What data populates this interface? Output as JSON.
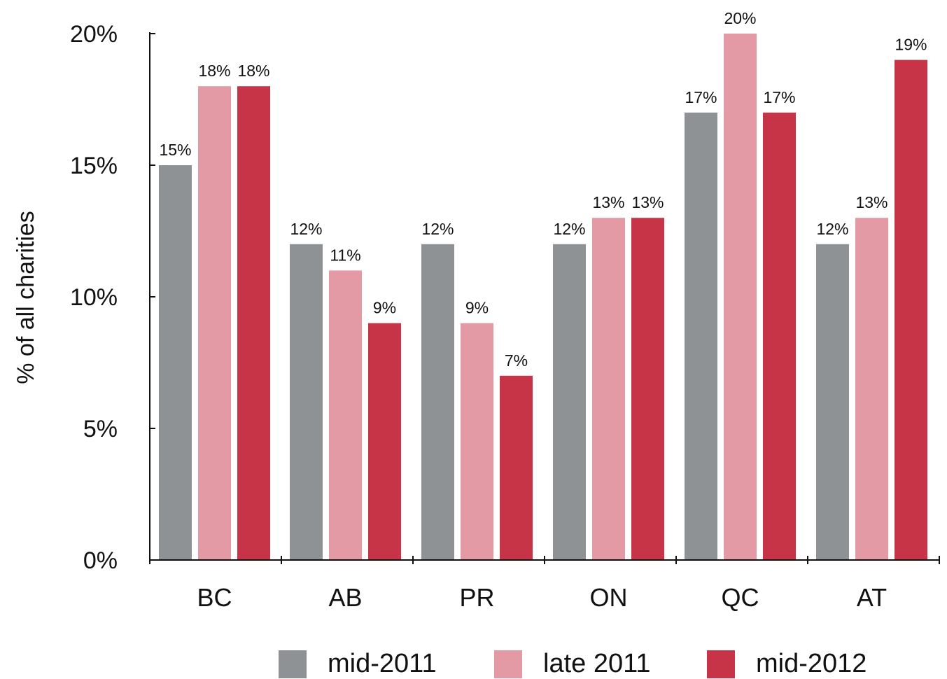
{
  "chart_data": {
    "type": "bar",
    "title": "",
    "xlabel": "",
    "ylabel": "% of all charities",
    "categories": [
      "BC",
      "AB",
      "PR",
      "ON",
      "QC",
      "AT"
    ],
    "series": [
      {
        "name": "mid-2011",
        "color": "#8f9294",
        "values": [
          15,
          12,
          12,
          12,
          17,
          12
        ],
        "labels": [
          "15%",
          "12%",
          "12%",
          "12%",
          "17%",
          "12%"
        ]
      },
      {
        "name": "late 2011",
        "color": "#e39aa5",
        "values": [
          18,
          11,
          9,
          13,
          20,
          13
        ],
        "labels": [
          "18%",
          "11%",
          "9%",
          "13%",
          "20%",
          "13%"
        ]
      },
      {
        "name": "mid-2012",
        "color": "#c83447",
        "values": [
          18,
          9,
          7,
          13,
          17,
          19
        ],
        "labels": [
          "18%",
          "9%",
          "7%",
          "13%",
          "17%",
          "19%"
        ]
      }
    ],
    "ylim": [
      0,
      20
    ],
    "yticks": [
      0,
      5,
      10,
      15,
      20
    ],
    "ytick_labels": [
      "0%",
      "5%",
      "10%",
      "15%",
      "20%"
    ],
    "grid": false,
    "legend_position": "bottom"
  }
}
